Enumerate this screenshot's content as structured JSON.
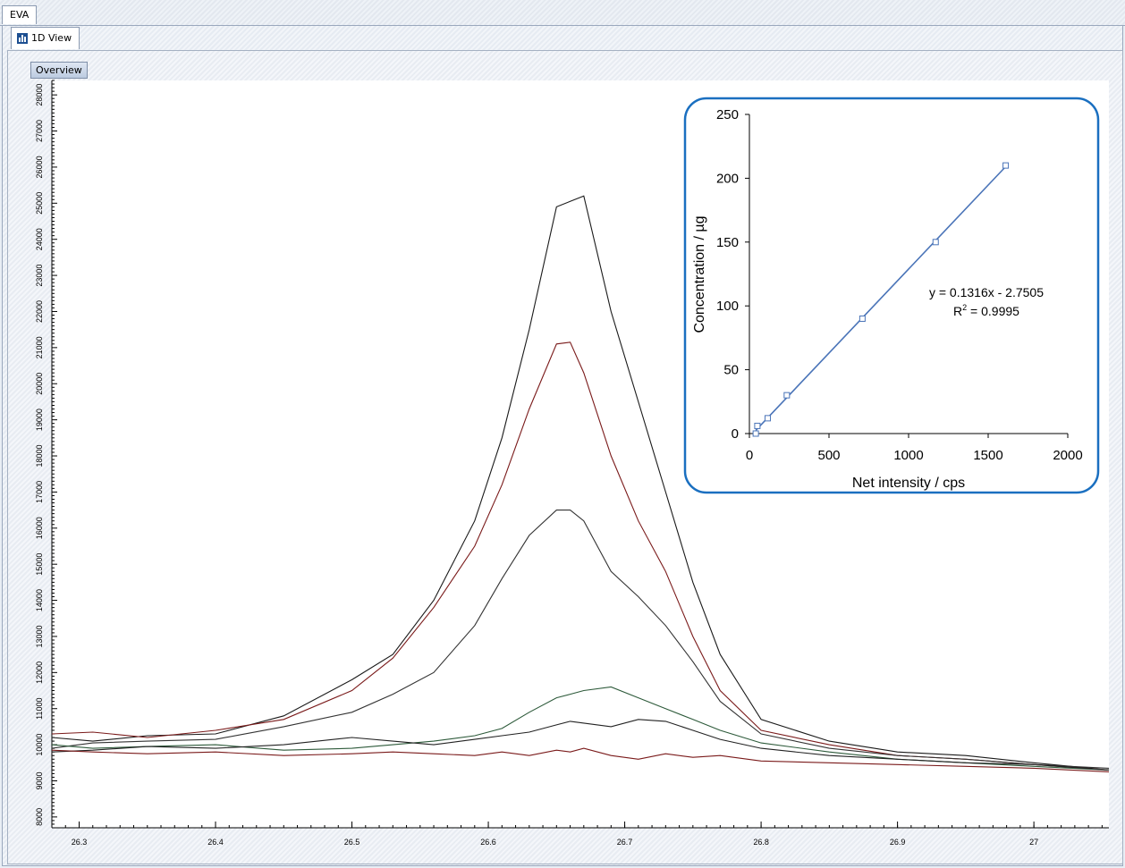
{
  "window": {
    "tab_label": "EVA"
  },
  "view": {
    "tab_label": "1D View",
    "overview_label": "Overview"
  },
  "colors": {
    "axis": "#000000",
    "inset_series": "#4a74b8",
    "inset_border": "#1a6fc0",
    "black_trace": "#1a1a1a",
    "red_trace": "#7a1a1a",
    "green_trace": "#2d5a3a"
  },
  "chart_data": [
    {
      "type": "line",
      "title": "",
      "xlabel": "",
      "ylabel": "",
      "xlim": [
        26.28,
        27.055
      ],
      "ylim": [
        7700,
        28400
      ],
      "x_ticks": [
        26.3,
        26.4,
        26.5,
        26.6,
        26.7,
        26.8,
        26.9,
        27
      ],
      "x_tick_labels": [
        "26.3",
        "26.4",
        "26.5",
        "26.6",
        "26.7",
        "26.8",
        "26.9",
        "27"
      ],
      "y_ticks": [
        8000,
        9000,
        10000,
        11000,
        12000,
        13000,
        14000,
        15000,
        16000,
        17000,
        18000,
        19000,
        20000,
        21000,
        22000,
        23000,
        24000,
        25000,
        26000,
        27000,
        28000
      ],
      "y_tick_labels": [
        "8000",
        "9000",
        "10000",
        "11000",
        "12000",
        "13000",
        "14000",
        "15000",
        "16000",
        "17000",
        "18000",
        "19000",
        "20000",
        "21000",
        "22000",
        "23000",
        "24000",
        "25000",
        "26000",
        "27000",
        "28000"
      ],
      "grid": false,
      "x": [
        26.28,
        26.31,
        26.35,
        26.4,
        26.45,
        26.5,
        26.53,
        26.56,
        26.59,
        26.61,
        26.63,
        26.65,
        26.66,
        26.67,
        26.69,
        26.71,
        26.73,
        26.75,
        26.77,
        26.8,
        26.85,
        26.9,
        26.95,
        27.0,
        27.055
      ],
      "series": [
        {
          "color": "#1a1a1a",
          "values": [
            10200,
            10100,
            10250,
            10300,
            10800,
            11800,
            12500,
            14000,
            16200,
            18500,
            21500,
            24900,
            25050,
            25200,
            22000,
            19500,
            17000,
            14500,
            12500,
            10700,
            10100,
            9800,
            9700,
            9500,
            9300
          ]
        },
        {
          "color": "#7a1a1a",
          "values": [
            10300,
            10350,
            10200,
            10400,
            10700,
            11500,
            12400,
            13800,
            15500,
            17200,
            19300,
            21100,
            21150,
            20300,
            18000,
            16200,
            14800,
            13000,
            11500,
            10400,
            10000,
            9700,
            9600,
            9450,
            9300
          ]
        },
        {
          "color": "#333333",
          "values": [
            9900,
            10050,
            10100,
            10150,
            10500,
            10900,
            11400,
            12000,
            13300,
            14600,
            15800,
            16500,
            16500,
            16200,
            14800,
            14100,
            13300,
            12300,
            11200,
            10300,
            9900,
            9700,
            9600,
            9450,
            9350
          ]
        },
        {
          "color": "#2d5a3a",
          "values": [
            10000,
            9900,
            9950,
            10000,
            9850,
            9900,
            10000,
            10100,
            10250,
            10450,
            10900,
            11300,
            11400,
            11500,
            11600,
            11300,
            11000,
            10700,
            10400,
            10050,
            9800,
            9600,
            9500,
            9400,
            9300
          ]
        },
        {
          "color": "#222222",
          "values": [
            9800,
            9850,
            9950,
            9900,
            10000,
            10200,
            10100,
            10000,
            10150,
            10250,
            10350,
            10550,
            10650,
            10600,
            10500,
            10700,
            10650,
            10400,
            10150,
            9900,
            9700,
            9600,
            9500,
            9450,
            9300
          ]
        },
        {
          "color": "#7a1a1a",
          "values": [
            9850,
            9800,
            9750,
            9800,
            9700,
            9750,
            9800,
            9750,
            9700,
            9800,
            9700,
            9850,
            9800,
            9900,
            9700,
            9600,
            9750,
            9650,
            9700,
            9550,
            9500,
            9450,
            9400,
            9350,
            9250
          ]
        }
      ]
    },
    {
      "type": "scatter",
      "title": "",
      "xlabel": "Net  intensity / cps",
      "ylabel": "Concentration / µg",
      "xlim": [
        0,
        2000
      ],
      "ylim": [
        0,
        250
      ],
      "x_ticks": [
        0,
        500,
        1000,
        1500,
        2000
      ],
      "x_tick_labels": [
        "0",
        "500",
        "1000",
        "1500",
        "2000"
      ],
      "y_ticks": [
        0,
        50,
        100,
        150,
        200,
        250
      ],
      "y_tick_labels": [
        "0",
        "50",
        "100",
        "150",
        "200",
        "250"
      ],
      "grid": false,
      "x": [
        40,
        50,
        115,
        235,
        710,
        1170,
        1610
      ],
      "values": [
        0,
        6,
        12,
        30,
        90,
        150,
        210
      ],
      "trendline": {
        "slope": 0.1316,
        "intercept": -2.7505,
        "x_range": [
          40,
          1610
        ]
      },
      "annotations": {
        "equation": "y = 0.1316x - 2.7505",
        "r2_prefix": "R",
        "r2_sup": "2",
        "r2_suffix": " = 0.9995"
      }
    }
  ]
}
